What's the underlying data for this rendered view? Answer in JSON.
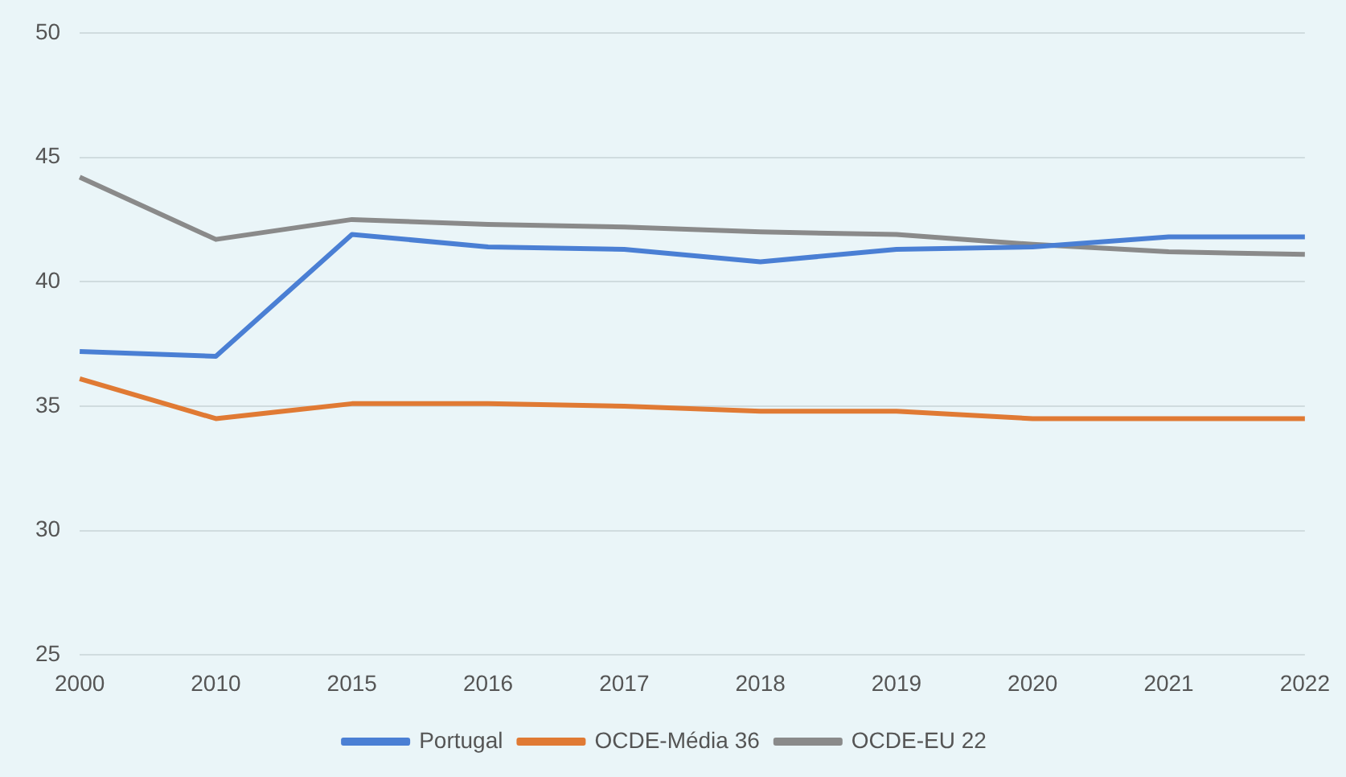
{
  "chart_data": {
    "type": "line",
    "categories": [
      "2000",
      "2010",
      "2015",
      "2016",
      "2017",
      "2018",
      "2019",
      "2020",
      "2021",
      "2022"
    ],
    "series": [
      {
        "name": "Portugal",
        "color": "#4a7fd4",
        "values": [
          37.2,
          37.0,
          41.9,
          41.4,
          41.3,
          40.8,
          41.3,
          41.4,
          41.8,
          41.8
        ]
      },
      {
        "name": "OCDE-Média 36",
        "color": "#e07a34",
        "values": [
          36.1,
          34.5,
          35.1,
          35.1,
          35.0,
          34.8,
          34.8,
          34.5,
          34.5,
          34.5
        ]
      },
      {
        "name": "OCDE-EU 22",
        "color": "#8a8a8a",
        "values": [
          44.2,
          41.7,
          42.5,
          42.3,
          42.2,
          42.0,
          41.9,
          41.5,
          41.2,
          41.1
        ]
      }
    ],
    "ylim": [
      25,
      50
    ],
    "yticks": [
      25,
      30,
      35,
      40,
      45,
      50
    ],
    "grid": "y",
    "legend": "bottom",
    "marker": "none"
  }
}
